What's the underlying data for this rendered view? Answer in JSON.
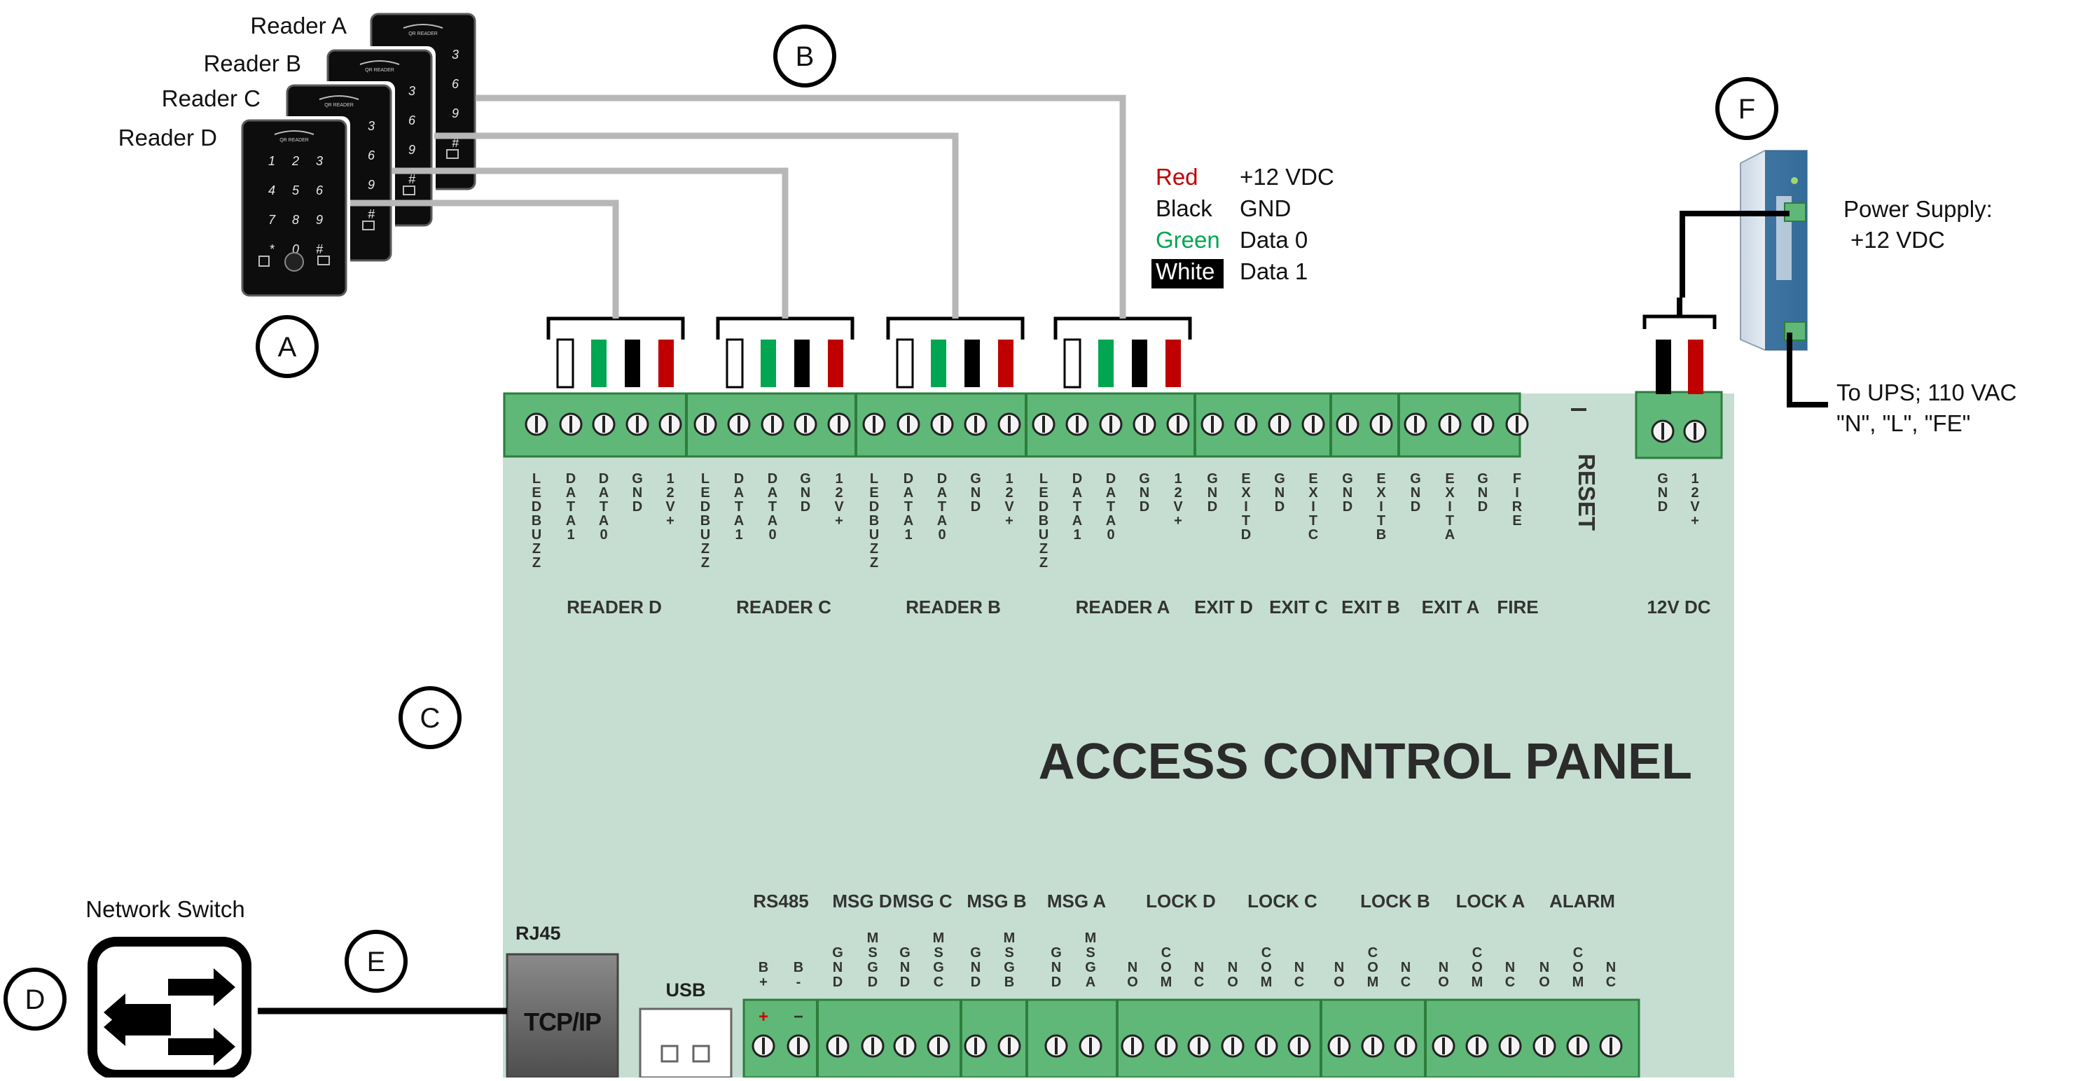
{
  "callouts": {
    "a": "A",
    "b": "B",
    "c": "C",
    "d": "D",
    "e": "E",
    "f": "F"
  },
  "readers": {
    "labels": [
      "Reader A",
      "Reader B",
      "Reader C",
      "Reader D"
    ],
    "device_brand": "QR READER",
    "keys": [
      "1",
      "2",
      "3",
      "4",
      "5",
      "6",
      "7",
      "8",
      "9",
      "*",
      "0",
      "#"
    ]
  },
  "legend": [
    {
      "color_word": "Red",
      "meaning": "+12 VDC",
      "color": "#c00000"
    },
    {
      "color_word": "Black",
      "meaning": "GND",
      "color": "#000000"
    },
    {
      "color_word": "Green",
      "meaning": "Data 0",
      "color": "#00a651"
    },
    {
      "color_word": "White",
      "meaning": "Data 1",
      "color": "#000000"
    }
  ],
  "power_supply": {
    "label_line1": "Power Supply:",
    "label_line2": "+12 VDC",
    "ups_line1": "To UPS; 110 VAC",
    "ups_line2": "\"N\", \"L\", \"FE\""
  },
  "panel": {
    "title": "ACCESS  CONTROL PANEL",
    "reset": "RESET",
    "colors": {
      "board": "#c6ded2",
      "terminal": "#5fb878",
      "terminal_dark": "#2e7d3c"
    },
    "top_terminals": [
      [
        "LEDBUZZ",
        "DATA1",
        "DATA0",
        "GND",
        "12V+"
      ],
      [
        "LEDBUZZ",
        "DATA1",
        "DATA0",
        "GND",
        "12V+"
      ],
      [
        "LEDBUZZ",
        "DATA1",
        "DATA0",
        "GND",
        "12V+"
      ],
      [
        "LEDBUZZ",
        "DATA1",
        "DATA0",
        "GND",
        "12V+"
      ],
      [
        "GND",
        "EXITD",
        "GND",
        "EXITC"
      ],
      [
        "GND",
        "EXITB"
      ],
      [
        "GND",
        "EXITA",
        "GND",
        "FIRE"
      ]
    ],
    "top_groups": [
      "READER  D",
      "READER  C",
      "READER  B",
      "READER  A",
      "EXIT D",
      "EXIT C",
      "EXIT B",
      "EXIT A",
      "FIRE"
    ],
    "dc": {
      "terminals": [
        "GND",
        "12V+"
      ],
      "label": "12V  DC"
    },
    "bottom_groups": [
      "RS485",
      "MSG D",
      "MSG C",
      "MSG B",
      "MSG A",
      "LOCK D",
      "LOCK C",
      "LOCK B",
      "LOCK A",
      "ALARM"
    ],
    "bottom_terminals": [
      [
        "B+",
        "B-"
      ],
      [
        "GND",
        "MSGD",
        "GND",
        "MSGC"
      ],
      [
        "GND",
        "MSGB"
      ],
      [
        "GND",
        "MSGA"
      ],
      [
        "NO",
        "COM",
        "NC",
        "NO",
        "COM",
        "NC"
      ],
      [
        "NO",
        "COM",
        "NC"
      ],
      [
        "NO",
        "COM",
        "NC",
        "NO",
        "COM",
        "NC"
      ]
    ],
    "rs485_marks": [
      "+",
      "−"
    ],
    "rj45": "RJ45",
    "tcpip": "TCP/IP",
    "usb": "USB"
  },
  "network": {
    "label": "Network Switch"
  }
}
